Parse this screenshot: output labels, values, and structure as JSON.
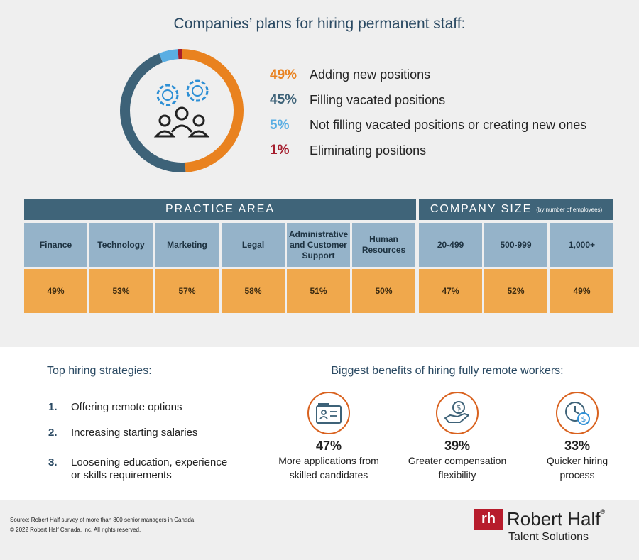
{
  "title": "Companies’ plans for hiring permanent staff:",
  "chart_data": [
    {
      "type": "pie",
      "title": "Companies’ plans for hiring permanent staff:",
      "slices": [
        {
          "label": "Adding new positions",
          "value": 49,
          "display": "49%",
          "color": "#e9821f"
        },
        {
          "label": "Filling vacated positions",
          "value": 45,
          "display": "45%",
          "color": "#3d6278"
        },
        {
          "label": "Not filling vacated positions or creating new ones",
          "value": 5,
          "display": "5%",
          "color": "#5aaee3"
        },
        {
          "label": "Eliminating positions",
          "value": 1,
          "display": "1%",
          "color": "#a51d2d"
        }
      ]
    },
    {
      "type": "table",
      "groups": [
        {
          "name": "PRACTICE AREA",
          "note": ""
        },
        {
          "name": "COMPANY SIZE",
          "note": "(by number of employees)"
        }
      ],
      "categories": [
        "Finance",
        "Technology",
        "Marketing",
        "Legal",
        "Administrative and Customer Support",
        "Human Resources",
        "20-499",
        "500-999",
        "1,000+"
      ],
      "values": [
        "49%",
        "53%",
        "57%",
        "58%",
        "51%",
        "50%",
        "47%",
        "52%",
        "49%"
      ]
    }
  ],
  "strategies": {
    "title": "Top hiring strategies:",
    "items": [
      {
        "num": "1.",
        "text": "Offering remote options"
      },
      {
        "num": "2.",
        "text": "Increasing starting salaries"
      },
      {
        "num": "3.",
        "text": "Loosening education, experience\nor skills requirements"
      }
    ]
  },
  "benefits": {
    "title": "Biggest benefits of hiring fully remote workers:",
    "items": [
      {
        "pct": "47%",
        "label": "More applications from\nskilled candidates",
        "icon": "applications-icon"
      },
      {
        "pct": "39%",
        "label": "Greater compensation\nflexibility",
        "icon": "money-hand-icon"
      },
      {
        "pct": "33%",
        "label": "Quicker hiring\nprocess",
        "icon": "clock-dollar-icon"
      }
    ]
  },
  "footer": {
    "source": "Source: Robert Half survey of more than 800 senior managers in Canada",
    "copyright": "© 2022 Robert Half Canada, Inc. All rights reserved.",
    "logo_mark": "rh",
    "logo_name": "Robert Half",
    "logo_reg": "®",
    "logo_sub": "Talent Solutions"
  }
}
